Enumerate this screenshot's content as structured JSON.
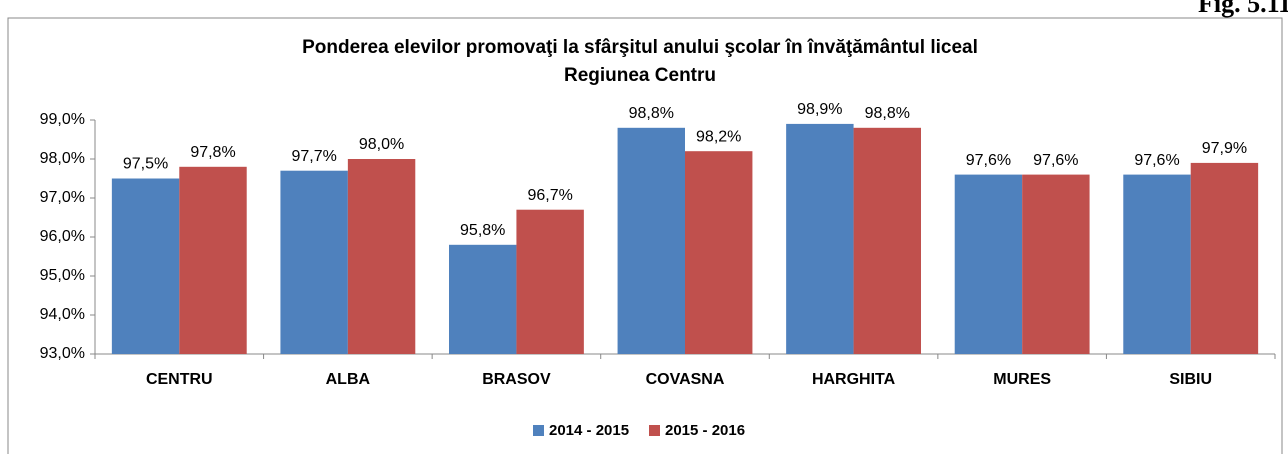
{
  "figure_label": "Fig. 5.11",
  "chart_data": {
    "type": "bar",
    "title": "Ponderea elevilor promovaţi la sfârşitul anului şcolar în învăţământul liceal",
    "subtitle": "Regiunea Centru",
    "categories": [
      "CENTRU",
      "ALBA",
      "BRASOV",
      "COVASNA",
      "HARGHITA",
      "MURES",
      "SIBIU"
    ],
    "series": [
      {
        "name": "2014 - 2015",
        "color": "#4f81bd",
        "values": [
          97.5,
          97.7,
          95.8,
          98.8,
          98.9,
          97.6,
          97.6
        ],
        "value_labels": [
          "97,5%",
          "97,7%",
          "95,8%",
          "98,8%",
          "98,9%",
          "97,6%",
          "97,6%"
        ]
      },
      {
        "name": "2015 - 2016",
        "color": "#c0504d",
        "values": [
          97.8,
          98.0,
          96.7,
          98.2,
          98.8,
          97.6,
          97.9
        ],
        "value_labels": [
          "97,8%",
          "98,0%",
          "96,7%",
          "98,2%",
          "98,8%",
          "97,6%",
          "97,9%"
        ]
      }
    ],
    "ylim": [
      93,
      99
    ],
    "yticks": [
      {
        "value": 93,
        "label": "93,0%"
      },
      {
        "value": 94,
        "label": "94,0%"
      },
      {
        "value": 95,
        "label": "95,0%"
      },
      {
        "value": 96,
        "label": "96,0%"
      },
      {
        "value": 97,
        "label": "97,0%"
      },
      {
        "value": 98,
        "label": "98,0%"
      },
      {
        "value": 99,
        "label": "99,0%"
      }
    ],
    "grid": false,
    "legend": "bottom"
  }
}
